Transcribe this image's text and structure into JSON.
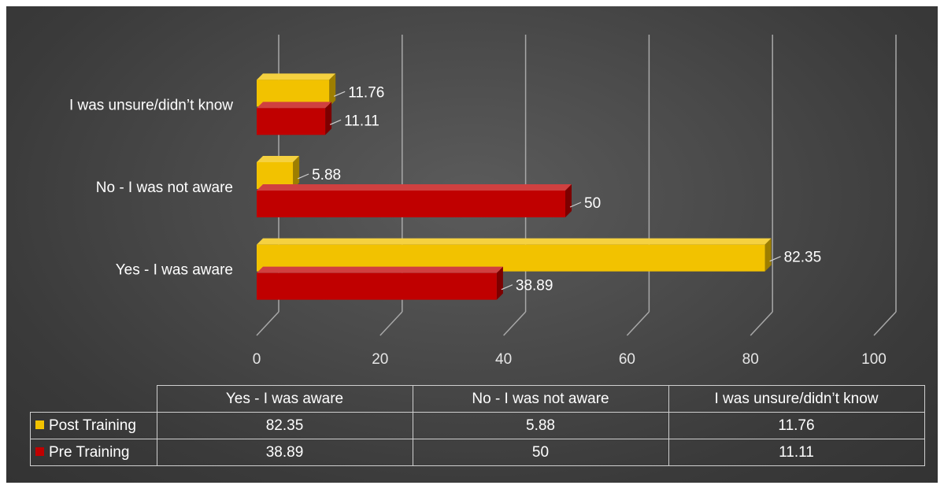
{
  "chart_data": {
    "type": "bar",
    "orientation": "horizontal",
    "categories": [
      "Yes - I was aware",
      "No - I was not aware",
      "I was unsure/didn’t know"
    ],
    "series": [
      {
        "name": "Post Training",
        "values": [
          82.35,
          5.88,
          11.76
        ],
        "color": "#f2c200"
      },
      {
        "name": "Pre Training",
        "values": [
          38.89,
          50,
          11.11
        ],
        "color": "#c00000"
      }
    ],
    "x_ticks": [
      "0",
      "20",
      "40",
      "60",
      "80",
      "100"
    ],
    "xlim": [
      0,
      100
    ],
    "grid": true,
    "legend": "data-table-below",
    "data_labels": true
  },
  "table": {
    "columns": [
      "Yes - I was aware",
      "No - I was not aware",
      "I was unsure/didn’t know"
    ],
    "rows": [
      {
        "label": "Post Training",
        "color": "#f2c200",
        "values": [
          "82.35",
          "5.88",
          "11.76"
        ]
      },
      {
        "label": "Pre Training",
        "color": "#c00000",
        "values": [
          "38.89",
          "50",
          "11.11"
        ]
      }
    ]
  }
}
